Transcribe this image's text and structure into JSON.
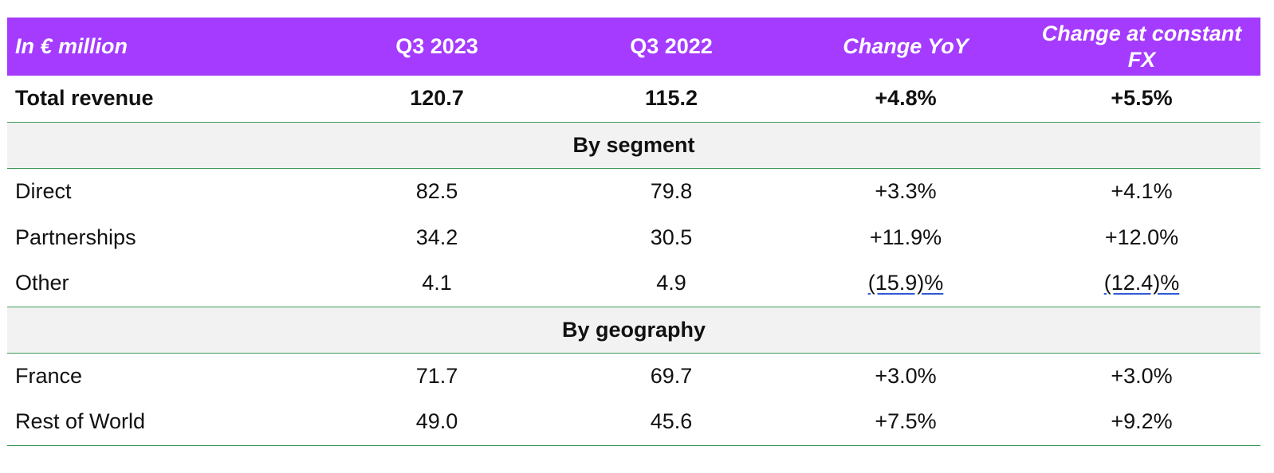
{
  "header": {
    "col0": "In € million",
    "col1": "Q3 2023",
    "col2": "Q3 2022",
    "col3": "Change YoY",
    "col4": "Change at constant FX"
  },
  "total": {
    "label": "Total revenue",
    "q3_2023": "120.7",
    "q3_2022": "115.2",
    "change_yoy": "+4.8%",
    "change_fx": "+5.5%"
  },
  "segment": {
    "title": "By segment",
    "rows": [
      {
        "label": "Direct",
        "q3_2023": "82.5",
        "q3_2022": "79.8",
        "change_yoy": "+3.3%",
        "change_fx": "+4.1%"
      },
      {
        "label": "Partnerships",
        "q3_2023": "34.2",
        "q3_2022": "30.5",
        "change_yoy": "+11.9%",
        "change_fx": "+12.0%"
      },
      {
        "label": "Other",
        "q3_2023": "4.1",
        "q3_2022": "4.9",
        "change_yoy": "(15.9)%",
        "change_fx": "(12.4)%"
      }
    ]
  },
  "geography": {
    "title": "By geography",
    "rows": [
      {
        "label": "France",
        "q3_2023": "71.7",
        "q3_2022": "69.7",
        "change_yoy": "+3.0%",
        "change_fx": "+3.0%"
      },
      {
        "label": "Rest of World",
        "q3_2023": "49.0",
        "q3_2022": "45.6",
        "change_yoy": "+7.5%",
        "change_fx": "+9.2%"
      }
    ]
  },
  "colors": {
    "header_bg": "#a53bff",
    "section_bg": "#f2f2f2",
    "rule": "#3c9a57",
    "underline": "#2f5bd3"
  }
}
